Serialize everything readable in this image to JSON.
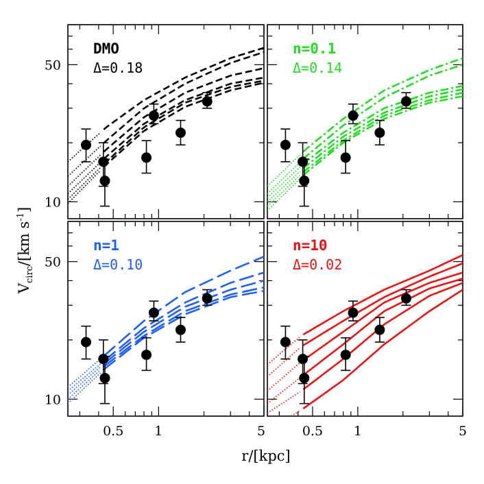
{
  "figure": {
    "xlabel": "r/[kpc]",
    "ylabel_main": "V",
    "ylabel_sub": "circ",
    "ylabel_rest": "/[km s",
    "ylabel_exp": "-1",
    "ylabel_end": "]"
  },
  "chart_data": [
    {
      "type": "line",
      "title": "DMO",
      "subtitle": "Δ=0.18",
      "color": "#000000",
      "line_style": "short-dash",
      "xscale": "log",
      "yscale": "log",
      "xlim": [
        0.25,
        5
      ],
      "ylim": [
        8.2,
        80
      ],
      "x_ticks": [],
      "y_ticks": [
        10,
        50
      ],
      "observations": [
        {
          "r": 0.33,
          "v": 19.5,
          "err": [
            16.0,
            23.5
          ]
        },
        {
          "r": 0.43,
          "v": 16.0,
          "err": [
            12.0,
            20.0
          ]
        },
        {
          "r": 0.44,
          "v": 12.8,
          "err": [
            9.5,
            16.5
          ]
        },
        {
          "r": 0.83,
          "v": 16.8,
          "err": [
            14.0,
            20.5
          ]
        },
        {
          "r": 0.93,
          "v": 27.5,
          "err": [
            25.0,
            31.5
          ]
        },
        {
          "r": 1.4,
          "v": 22.5,
          "err": [
            19.5,
            26.0
          ]
        },
        {
          "r": 2.1,
          "v": 32.5,
          "err": [
            30.0,
            36.0
          ]
        }
      ],
      "series": [
        {
          "x": [
            0.25,
            0.45,
            0.8,
            1.5,
            3,
            5
          ],
          "y": [
            16,
            24,
            33,
            43,
            54,
            61
          ]
        },
        {
          "x": [
            0.25,
            0.45,
            0.8,
            1.5,
            3,
            5
          ],
          "y": [
            13.5,
            20.5,
            30,
            40,
            51,
            58
          ]
        },
        {
          "x": [
            0.25,
            0.45,
            0.8,
            1.5,
            3,
            5
          ],
          "y": [
            12,
            18.5,
            27,
            36,
            44,
            48
          ]
        },
        {
          "x": [
            0.25,
            0.45,
            0.8,
            1.5,
            3,
            5
          ],
          "y": [
            11,
            17,
            25,
            33,
            40,
            43
          ]
        },
        {
          "x": [
            0.25,
            0.45,
            0.8,
            1.5,
            3,
            5
          ],
          "y": [
            10.3,
            16,
            24,
            32,
            38.5,
            41.5
          ]
        },
        {
          "x": [
            0.25,
            0.45,
            0.8,
            1.5,
            3,
            5
          ],
          "y": [
            9.8,
            15.5,
            23,
            30.5,
            37,
            40.5
          ]
        }
      ],
      "solid_from": 0.42
    },
    {
      "type": "line",
      "title": "n=0.1",
      "subtitle": "Δ=0.14",
      "color": "#22dd22",
      "line_style": "dash-dot",
      "xscale": "log",
      "yscale": "log",
      "xlim": [
        0.25,
        5
      ],
      "ylim": [
        8.2,
        80
      ],
      "x_ticks": [],
      "y_ticks": [],
      "observations": [
        {
          "r": 0.33,
          "v": 19.5,
          "err": [
            16.0,
            23.5
          ]
        },
        {
          "r": 0.43,
          "v": 16.0,
          "err": [
            12.0,
            20.0
          ]
        },
        {
          "r": 0.44,
          "v": 12.8,
          "err": [
            9.5,
            16.5
          ]
        },
        {
          "r": 0.83,
          "v": 16.8,
          "err": [
            14.0,
            20.5
          ]
        },
        {
          "r": 0.93,
          "v": 27.5,
          "err": [
            25.0,
            31.5
          ]
        },
        {
          "r": 1.4,
          "v": 22.5,
          "err": [
            19.5,
            26.0
          ]
        },
        {
          "r": 2.1,
          "v": 32.5,
          "err": [
            30.0,
            36.0
          ]
        }
      ],
      "series": [
        {
          "x": [
            0.25,
            0.45,
            0.8,
            1.5,
            3,
            5
          ],
          "y": [
            12,
            18.5,
            26.5,
            37,
            47,
            54
          ]
        },
        {
          "x": [
            0.25,
            0.45,
            0.8,
            1.5,
            3,
            5
          ],
          "y": [
            11,
            17,
            24.5,
            34,
            44,
            50
          ]
        },
        {
          "x": [
            0.25,
            0.45,
            0.8,
            1.5,
            3,
            5
          ],
          "y": [
            10.5,
            16,
            22.5,
            30,
            36,
            39
          ]
        },
        {
          "x": [
            0.25,
            0.45,
            0.8,
            1.5,
            3,
            5
          ],
          "y": [
            10,
            15.2,
            21.5,
            28.5,
            34.5,
            37.5
          ]
        },
        {
          "x": [
            0.25,
            0.45,
            0.8,
            1.5,
            3,
            5
          ],
          "y": [
            9.5,
            14.5,
            20.5,
            27.5,
            33,
            36
          ]
        },
        {
          "x": [
            0.25,
            0.45,
            0.8,
            1.5,
            3,
            5
          ],
          "y": [
            9,
            14,
            20,
            26.5,
            32,
            34.5
          ]
        }
      ],
      "solid_from": 0.42
    },
    {
      "type": "line",
      "title": "n=1",
      "subtitle": "Δ=0.10",
      "color": "#1f5fff",
      "line_style": "long-dash",
      "xscale": "log",
      "yscale": "log",
      "xlim": [
        0.25,
        5
      ],
      "ylim": [
        8.2,
        80
      ],
      "x_ticks": [
        "0.5",
        "1",
        "5"
      ],
      "x_tick_values": [
        0.5,
        1,
        5
      ],
      "y_ticks": [
        10,
        50
      ],
      "observations": [
        {
          "r": 0.33,
          "v": 19.5,
          "err": [
            16.0,
            23.5
          ]
        },
        {
          "r": 0.43,
          "v": 16.0,
          "err": [
            12.0,
            20.0
          ]
        },
        {
          "r": 0.44,
          "v": 12.8,
          "err": [
            9.5,
            16.5
          ]
        },
        {
          "r": 0.83,
          "v": 16.8,
          "err": [
            14.0,
            20.5
          ]
        },
        {
          "r": 0.93,
          "v": 27.5,
          "err": [
            25.0,
            31.5
          ]
        },
        {
          "r": 1.4,
          "v": 22.5,
          "err": [
            19.5,
            26.0
          ]
        },
        {
          "r": 2.1,
          "v": 32.5,
          "err": [
            30.0,
            36.0
          ]
        }
      ],
      "series": [
        {
          "x": [
            0.25,
            0.45,
            0.8,
            1.5,
            3,
            5
          ],
          "y": [
            11.5,
            17,
            25,
            35,
            45,
            53
          ]
        },
        {
          "x": [
            0.25,
            0.45,
            0.8,
            1.5,
            3,
            5
          ],
          "y": [
            11,
            16,
            23,
            31,
            39,
            44
          ]
        },
        {
          "x": [
            0.25,
            0.45,
            0.8,
            1.5,
            3,
            5
          ],
          "y": [
            10.5,
            15.5,
            22,
            29.5,
            36,
            40
          ]
        },
        {
          "x": [
            0.25,
            0.45,
            0.8,
            1.5,
            3,
            5
          ],
          "y": [
            10,
            15,
            21,
            28,
            34,
            37
          ]
        },
        {
          "x": [
            0.25,
            0.45,
            0.8,
            1.5,
            3,
            5
          ],
          "y": [
            9.5,
            14.5,
            20.5,
            27,
            33,
            35.5
          ]
        }
      ],
      "solid_from": 0.42
    },
    {
      "type": "line",
      "title": "n=10",
      "subtitle": "Δ=0.02",
      "color": "#ee1111",
      "line_style": "solid",
      "xscale": "log",
      "yscale": "log",
      "xlim": [
        0.25,
        5
      ],
      "ylim": [
        8.2,
        80
      ],
      "x_ticks": [
        "0.5",
        "1",
        "5"
      ],
      "x_tick_values": [
        0.5,
        1,
        5
      ],
      "y_ticks": [],
      "observations": [
        {
          "r": 0.33,
          "v": 19.5,
          "err": [
            16.0,
            23.5
          ]
        },
        {
          "r": 0.43,
          "v": 16.0,
          "err": [
            12.0,
            20.0
          ]
        },
        {
          "r": 0.44,
          "v": 12.8,
          "err": [
            9.5,
            16.5
          ]
        },
        {
          "r": 0.83,
          "v": 16.8,
          "err": [
            14.0,
            20.5
          ]
        },
        {
          "r": 0.93,
          "v": 27.5,
          "err": [
            25.0,
            31.5
          ]
        },
        {
          "r": 1.4,
          "v": 22.5,
          "err": [
            19.5,
            26.0
          ]
        },
        {
          "r": 2.1,
          "v": 32.5,
          "err": [
            30.0,
            36.0
          ]
        }
      ],
      "series": [
        {
          "x": [
            0.25,
            0.42,
            0.8,
            1.5,
            3,
            5
          ],
          "y": [
            15,
            21,
            28,
            36,
            45,
            54
          ]
        },
        {
          "x": [
            0.25,
            0.42,
            0.8,
            1.5,
            3,
            5
          ],
          "y": [
            13,
            18.5,
            25,
            33,
            42,
            49
          ]
        },
        {
          "x": [
            0.25,
            0.42,
            0.8,
            1.5,
            3,
            5
          ],
          "y": [
            11,
            15.5,
            22,
            31,
            39,
            44
          ]
        },
        {
          "x": [
            0.25,
            0.42,
            0.8,
            1.5,
            3,
            5
          ],
          "y": [
            9.5,
            13,
            19,
            28,
            36.5,
            41
          ]
        },
        {
          "x": [
            0.25,
            0.42,
            0.8,
            1.5,
            3,
            5
          ],
          "y": [
            8.5,
            11,
            16,
            24,
            33.5,
            39
          ]
        },
        {
          "x": [
            0.25,
            0.42,
            0.8,
            1.5,
            3,
            5
          ],
          "y": [
            7,
            8.8,
            12.5,
            19,
            28,
            36
          ]
        }
      ],
      "solid_from": 0.42
    }
  ]
}
